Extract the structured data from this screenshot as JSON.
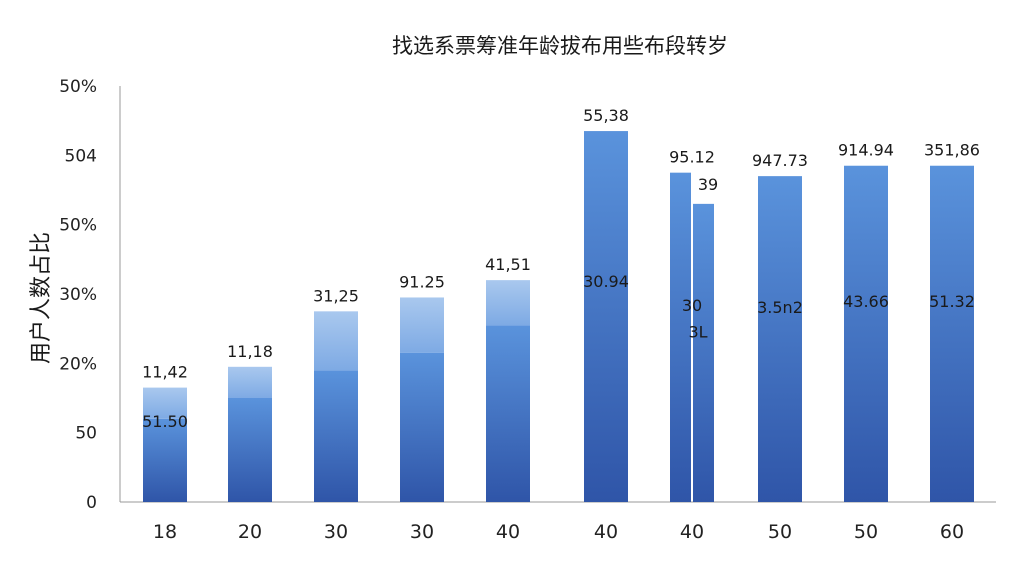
{
  "chart_data": {
    "type": "bar",
    "title": "找选系票筹准年龄拔布用些布段转岁",
    "ylabel": "用户人数占比",
    "xlabel": "",
    "y_tick_labels": [
      "0",
      "50",
      "20%",
      "30%",
      "50%",
      "504",
      "50%"
    ],
    "ylim": [
      0,
      60
    ],
    "grid": false,
    "legend": "none",
    "colors": {
      "dark_bottom": "#2f55a8",
      "dark_top": "#5a93dc",
      "light_top": "#a9c8ee",
      "light_bottom": "#7eaae4",
      "axis": "#999999"
    },
    "categories": [
      "18",
      "20",
      "30",
      "30",
      "40",
      "40",
      "40",
      "50",
      "50",
      "60"
    ],
    "stacks": [
      {
        "dark": 12,
        "light": 4.5
      },
      {
        "dark": 15,
        "light": 4.5
      },
      {
        "dark": 19,
        "light": 8.5
      },
      {
        "dark": 21.5,
        "light": 8
      },
      {
        "dark": 25.5,
        "light": 6.5
      },
      {
        "dark": 53.5,
        "light": 0
      },
      {
        "dark": 47.5,
        "light": 0,
        "second": 43
      },
      {
        "dark": 47,
        "light": 0
      },
      {
        "dark": 48.5,
        "light": 0
      },
      {
        "dark": 48.5,
        "light": 0
      }
    ],
    "top_labels": [
      "11,42",
      "11,18",
      "31,25",
      "91.25",
      "41,51",
      "55,38",
      "95.12",
      "947.73",
      "914.94",
      "351,86"
    ],
    "inner_labels": [
      "51.50",
      "",
      "",
      "",
      "",
      "30.94",
      "30",
      "3.5n2",
      "43.66",
      "51.32"
    ],
    "extra_labels": [
      "",
      "",
      "",
      "",
      "",
      "",
      "39",
      "",
      "",
      ""
    ],
    "extra_inner_labels": [
      "",
      "",
      "",
      "",
      "",
      "",
      "3L",
      "",
      "",
      ""
    ]
  }
}
